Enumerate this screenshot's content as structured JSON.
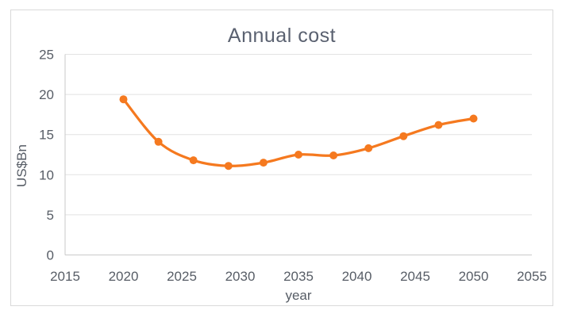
{
  "chart_data": {
    "type": "line",
    "title": "Annual cost",
    "xlabel": "year",
    "ylabel": "US$Bn",
    "x": [
      2020,
      2023,
      2026,
      2029,
      2032,
      2035,
      2038,
      2041,
      2044,
      2047,
      2050
    ],
    "values": [
      19.4,
      14.1,
      11.8,
      11.1,
      11.5,
      12.5,
      12.4,
      13.3,
      14.8,
      16.2,
      17.0
    ],
    "xlim": [
      2015,
      2055
    ],
    "ylim": [
      0,
      25
    ],
    "x_ticks": [
      2015,
      2020,
      2025,
      2030,
      2035,
      2040,
      2045,
      2050,
      2055
    ],
    "y_ticks": [
      0,
      5,
      10,
      15,
      20,
      25
    ],
    "grid": "horizontal",
    "legend": "none",
    "line_color": "#F5791F",
    "marker": "circle",
    "line_smooth": true
  },
  "colors": {
    "accent_orange": "#F5791F",
    "tick_text": "#575D66",
    "title_text": "#5A6170",
    "gridline": "#E2E2E2",
    "axis_line": "#C9C9C9",
    "frame_border": "#D9D9D9",
    "background": "#FFFFFF"
  }
}
